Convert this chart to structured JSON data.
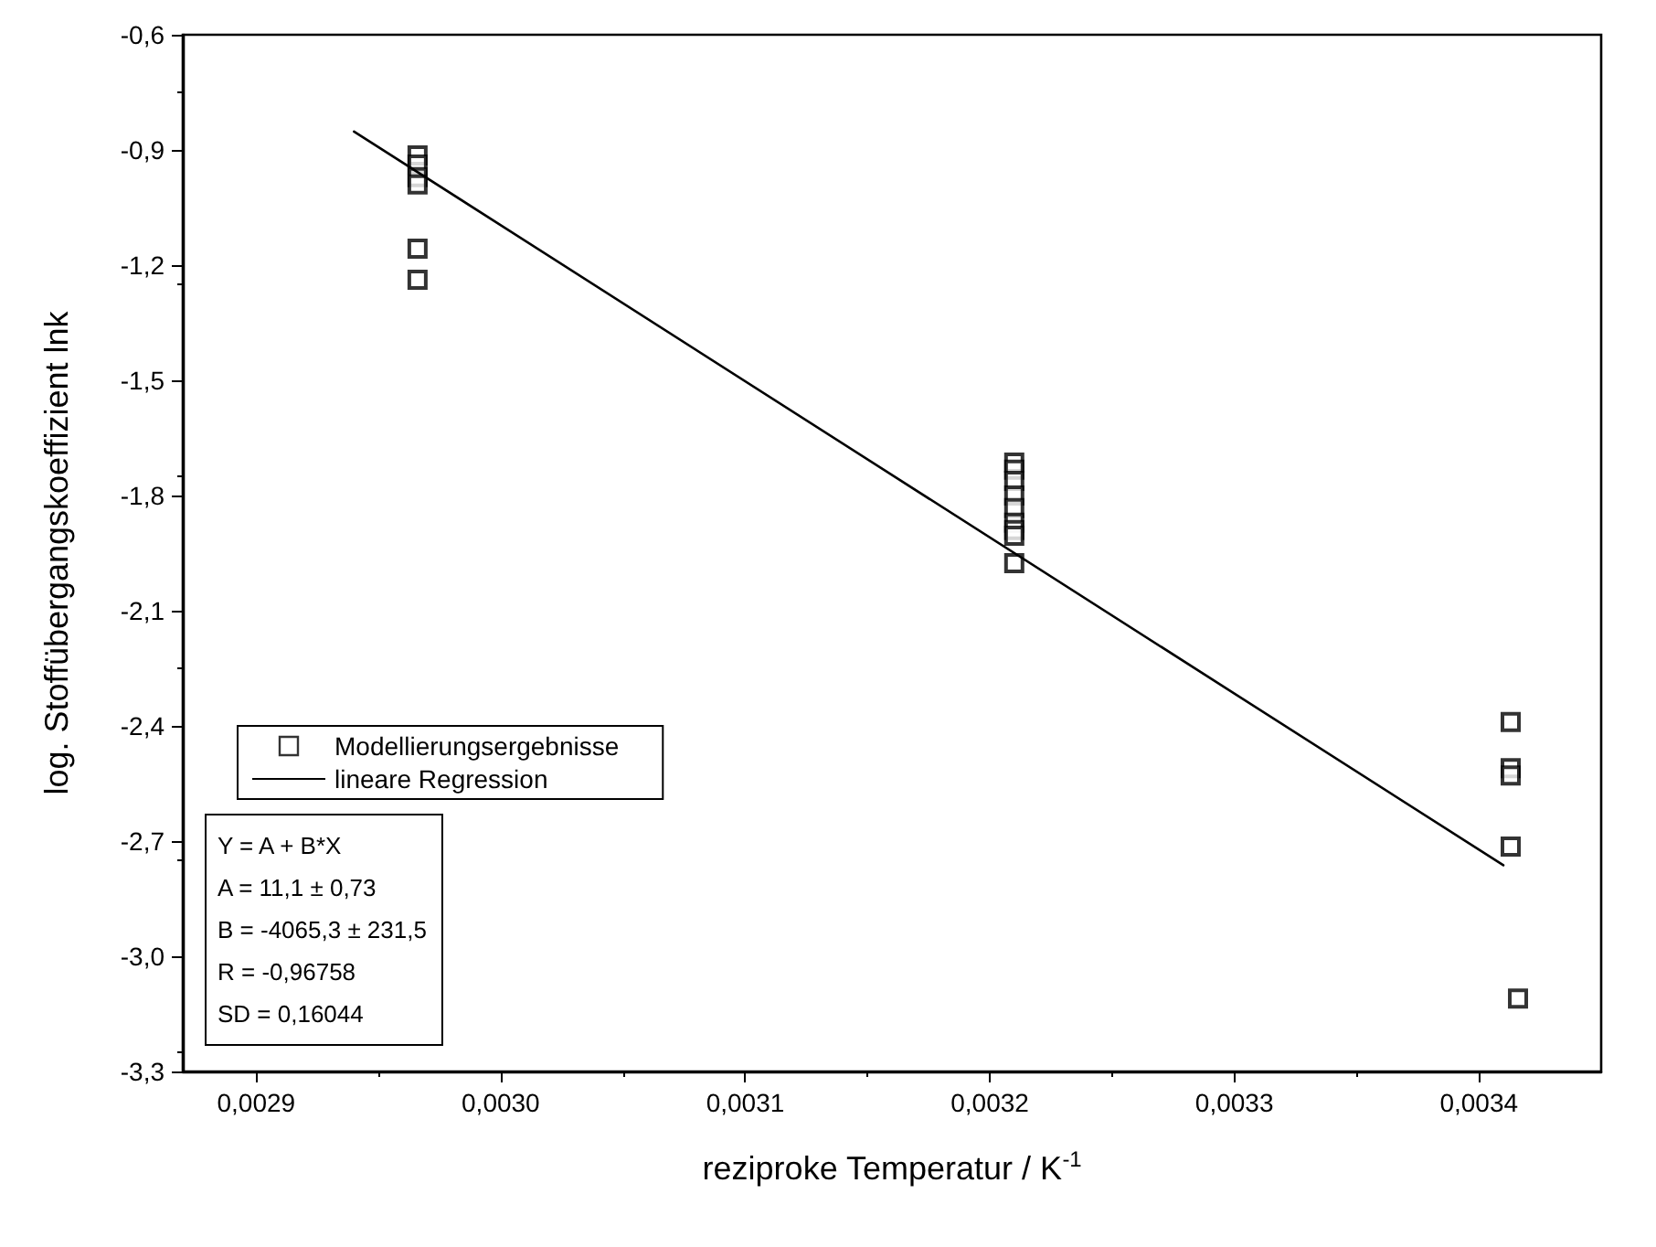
{
  "chart_data": {
    "type": "scatter",
    "xlabel": "reziproke Temperatur / K$^{-1}$",
    "ylabel": "log. Stoffübergangskoeffizient lnk",
    "xlim": [
      0.00287,
      0.00345
    ],
    "ylim": [
      -3.3,
      -0.6
    ],
    "xticks": [
      {
        "value": 0.0029,
        "label": "0,0029"
      },
      {
        "value": 0.003,
        "label": "0,0030"
      },
      {
        "value": 0.0031,
        "label": "0,0031"
      },
      {
        "value": 0.0032,
        "label": "0,0032"
      },
      {
        "value": 0.0033,
        "label": "0,0033"
      },
      {
        "value": 0.0034,
        "label": "0,0034"
      }
    ],
    "yticks": [
      {
        "value": -3.3,
        "label": "-3,3"
      },
      {
        "value": -3.0,
        "label": "-3,0"
      },
      {
        "value": -2.7,
        "label": "-2,7"
      },
      {
        "value": -2.4,
        "label": "-2,4"
      },
      {
        "value": -2.1,
        "label": "-2,1"
      },
      {
        "value": -1.8,
        "label": "-1,8"
      },
      {
        "value": -1.5,
        "label": "-1,5"
      },
      {
        "value": -1.2,
        "label": "-1,2"
      },
      {
        "value": -0.9,
        "label": "-0,9"
      },
      {
        "value": -0.6,
        "label": "-0,6"
      }
    ],
    "grid": false,
    "legend": "bottom left",
    "line_style": "solid",
    "annotations": [
      "Y = A + B*X",
      "A = 11,1 ± 0,73",
      "B = -4065,3 ± 231,5",
      "R = -0,96758",
      "SD = 0,16044"
    ],
    "series": [
      {
        "name": "Modellierungsergebnisse",
        "marker": "square",
        "color": "#000000",
        "x": [
          0.002966,
          0.002966,
          0.002966,
          0.002966,
          0.002966,
          0.002966,
          0.00321,
          0.00321,
          0.00321,
          0.00321,
          0.00321,
          0.00321,
          0.00321,
          0.00321,
          0.00321,
          0.003413,
          0.003413,
          0.003413,
          0.003413,
          0.003416
        ],
        "values": [
          -0.914,
          -0.938,
          -0.971,
          -0.99,
          -1.157,
          -1.238,
          -1.714,
          -1.733,
          -1.762,
          -1.8,
          -1.833,
          -1.871,
          -1.89,
          -1.905,
          -1.976,
          -2.39,
          -2.51,
          -2.529,
          -2.714,
          -3.11
        ]
      },
      {
        "name": "lineare Regression",
        "type": "line",
        "color": "#000000",
        "x": [
          0.00294,
          0.00341
        ],
        "values": [
          -0.852,
          -2.763
        ]
      }
    ]
  }
}
